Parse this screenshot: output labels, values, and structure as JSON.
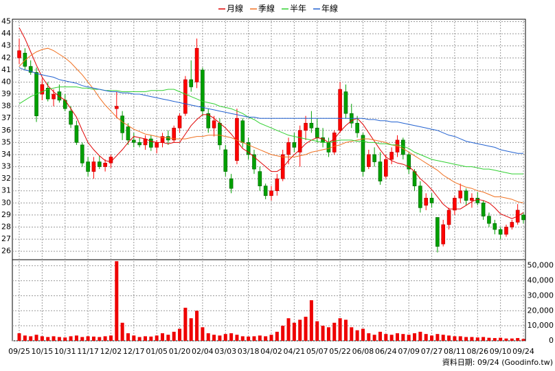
{
  "chart_data": {
    "type": "candlestick",
    "legend": "top",
    "grid": true,
    "up_color": "#ff0000",
    "down_color": "#00a000",
    "footer": "資料日期: 09/24  (Goodinfo.tw)",
    "categories": [
      "09/25",
      null,
      null,
      null,
      "10/15",
      null,
      null,
      null,
      "10/31",
      null,
      null,
      null,
      "11/17",
      null,
      null,
      null,
      "12/02",
      null,
      null,
      null,
      "12/17",
      null,
      null,
      null,
      "01/05",
      null,
      null,
      null,
      "01/20",
      null,
      null,
      null,
      "02/04",
      null,
      null,
      null,
      "03/03",
      null,
      null,
      null,
      "03/18",
      null,
      null,
      null,
      "04/02",
      null,
      null,
      null,
      "04/21",
      null,
      null,
      null,
      "05/07",
      null,
      null,
      null,
      "05/22",
      null,
      null,
      null,
      "06/08",
      null,
      null,
      null,
      "06/24",
      null,
      null,
      null,
      "07/09",
      null,
      null,
      null,
      "07/27",
      null,
      null,
      null,
      "08/11",
      null,
      null,
      null,
      "08/26",
      null,
      null,
      null,
      "09/10",
      null,
      null,
      null,
      "09/24"
    ],
    "open": [
      42.0,
      42.4,
      41.3,
      40.8,
      39.0,
      39.5,
      38.6,
      39.2,
      38.5,
      37.6,
      36.4,
      34.8,
      33.4,
      32.6,
      33.4,
      33.0,
      33.3,
      37.8,
      37.2,
      36.3,
      35.2,
      35.0,
      34.8,
      35.3,
      34.6,
      35.0,
      35.5,
      35.2,
      36.2,
      37.4,
      40.2,
      40.0,
      41.0,
      37.4,
      36.2,
      36.6,
      34.4,
      32.0,
      33.5,
      36.8,
      35.0,
      34.0,
      32.6,
      31.4,
      30.6,
      31.0,
      32.0,
      34.0,
      35.0,
      34.2,
      36.0,
      36.6,
      36.2,
      35.4,
      35.0,
      34.2,
      36.0,
      39.2,
      37.4,
      36.6,
      35.6,
      33.0,
      34.0,
      33.4,
      32.2,
      33.6,
      34.2,
      35.2,
      34.0,
      32.6,
      31.4,
      29.8,
      30.4,
      28.8,
      26.6,
      28.2,
      29.4,
      30.4,
      31.0,
      30.2,
      30.4,
      30.0,
      28.9,
      28.3,
      27.8,
      27.4,
      28.0,
      28.4,
      29.0
    ],
    "high": [
      43.6,
      42.8,
      41.8,
      41.2,
      40.3,
      40.0,
      39.4,
      39.8,
      39.0,
      38.0,
      36.8,
      35.0,
      33.8,
      33.8,
      33.9,
      33.6,
      34.0,
      39.2,
      37.6,
      36.6,
      35.8,
      35.4,
      35.6,
      35.6,
      35.2,
      35.8,
      36.0,
      36.4,
      37.4,
      40.5,
      41.8,
      43.6,
      41.2,
      37.8,
      37.2,
      37.0,
      34.8,
      32.4,
      37.8,
      37.0,
      35.4,
      34.4,
      33.0,
      31.6,
      31.4,
      32.4,
      34.4,
      35.4,
      35.8,
      36.4,
      37.2,
      37.6,
      37.0,
      36.2,
      35.4,
      36.0,
      40.0,
      39.8,
      38.2,
      37.2,
      35.8,
      34.4,
      34.6,
      34.2,
      34.0,
      34.6,
      35.6,
      35.4,
      34.2,
      32.8,
      31.8,
      30.8,
      30.8,
      28.8,
      28.6,
      29.6,
      30.6,
      31.6,
      31.2,
      30.8,
      30.9,
      30.2,
      29.2,
      28.6,
      28.0,
      28.2,
      28.6,
      29.9,
      29.2
    ],
    "low": [
      41.5,
      41.0,
      40.6,
      36.7,
      38.5,
      38.4,
      38.0,
      38.3,
      37.6,
      36.2,
      34.8,
      33.0,
      32.2,
      32.0,
      32.8,
      32.6,
      32.9,
      37.0,
      35.2,
      34.8,
      34.6,
      34.6,
      34.4,
      34.3,
      34.1,
      34.6,
      34.8,
      35.0,
      35.8,
      37.2,
      39.2,
      39.5,
      37.2,
      35.8,
      35.5,
      34.4,
      32.2,
      30.8,
      33.2,
      34.6,
      33.6,
      32.4,
      31.0,
      30.3,
      30.2,
      30.6,
      31.8,
      33.2,
      34.2,
      33.0,
      35.2,
      35.8,
      35.0,
      34.6,
      33.8,
      34.0,
      35.8,
      37.0,
      36.2,
      35.4,
      32.2,
      32.8,
      33.0,
      31.5,
      32.0,
      33.2,
      33.8,
      33.6,
      32.4,
      31.0,
      29.2,
      29.4,
      29.6,
      25.9,
      26.4,
      27.8,
      29.0,
      30.0,
      29.8,
      29.6,
      29.8,
      28.6,
      28.0,
      27.4,
      27.0,
      27.2,
      27.8,
      28.2,
      28.3
    ],
    "close": [
      42.6,
      41.3,
      40.8,
      37.2,
      39.8,
      38.6,
      39.0,
      38.5,
      37.8,
      36.5,
      35.0,
      33.3,
      32.6,
      33.4,
      33.0,
      33.3,
      33.8,
      38.0,
      35.8,
      35.2,
      35.0,
      34.8,
      35.3,
      34.6,
      35.0,
      35.5,
      35.2,
      36.2,
      37.2,
      40.2,
      39.6,
      42.8,
      37.6,
      36.2,
      36.8,
      34.8,
      32.6,
      31.2,
      37.0,
      35.0,
      34.0,
      32.8,
      31.4,
      30.6,
      31.0,
      32.0,
      34.0,
      35.0,
      34.6,
      36.0,
      36.6,
      36.2,
      35.4,
      35.0,
      34.2,
      35.8,
      39.4,
      37.4,
      36.6,
      35.8,
      32.6,
      34.0,
      33.4,
      31.8,
      33.6,
      34.2,
      35.2,
      34.0,
      32.8,
      31.4,
      29.6,
      30.4,
      30.0,
      26.4,
      28.2,
      29.4,
      30.4,
      31.0,
      30.2,
      30.4,
      30.0,
      28.9,
      28.3,
      27.8,
      27.4,
      28.0,
      28.4,
      29.4,
      28.6
    ],
    "ylim": [
      25.3,
      45.2
    ],
    "yticks": [
      26,
      27,
      28,
      29,
      30,
      31,
      32,
      33,
      34,
      35,
      36,
      37,
      38,
      39,
      40,
      41,
      42,
      43,
      44,
      45
    ],
    "series": [
      {
        "name": "月線",
        "color": "#e00000",
        "values": [
          44.5,
          43.6,
          42.5,
          41.4,
          40.4,
          39.7,
          39.2,
          38.8,
          38.5,
          37.8,
          37.1,
          36.0,
          35.0,
          34.4,
          33.9,
          33.5,
          33.4,
          33.9,
          34.4,
          35.0,
          35.5,
          35.4,
          35.3,
          35.1,
          35.0,
          35.0,
          34.9,
          35.0,
          35.0,
          35.7,
          36.4,
          36.9,
          37.3,
          37.3,
          37.0,
          36.6,
          36.2,
          35.7,
          35.1,
          34.5,
          34.2,
          33.8,
          33.4,
          33.0,
          32.6,
          32.6,
          32.9,
          33.5,
          34.0,
          34.4,
          34.9,
          35.2,
          35.4,
          35.3,
          35.0,
          35.3,
          35.9,
          36.4,
          36.8,
          37.0,
          36.5,
          35.8,
          35.1,
          34.4,
          33.8,
          33.5,
          33.3,
          33.2,
          33.0,
          32.6,
          32.0,
          31.6,
          31.1,
          30.5,
          29.9,
          29.5,
          29.5,
          29.5,
          29.8,
          30.1,
          30.3,
          30.2,
          30.0,
          29.6,
          29.1,
          28.9,
          28.7,
          28.9,
          29.2
        ]
      },
      {
        "name": "季線",
        "color": "#f07020",
        "values": [
          41.3,
          41.8,
          42.2,
          42.5,
          42.7,
          42.8,
          42.6,
          42.3,
          42.0,
          41.6,
          41.1,
          40.6,
          40.0,
          39.4,
          38.7,
          38.1,
          37.6,
          37.1,
          36.7,
          36.4,
          36.1,
          35.9,
          35.7,
          35.6,
          35.5,
          35.4,
          35.4,
          35.3,
          35.3,
          35.3,
          35.4,
          35.5,
          35.5,
          35.6,
          35.6,
          35.6,
          35.5,
          35.4,
          35.2,
          35.0,
          34.8,
          34.6,
          34.4,
          34.2,
          34.0,
          33.9,
          33.8,
          33.8,
          33.8,
          33.9,
          34.0,
          34.2,
          34.3,
          34.4,
          34.5,
          34.7,
          34.8,
          35.0,
          35.1,
          35.2,
          35.3,
          35.3,
          35.2,
          35.1,
          35.0,
          34.8,
          34.7,
          34.5,
          34.2,
          33.9,
          33.6,
          33.3,
          33.0,
          32.7,
          32.3,
          32.0,
          31.7,
          31.5,
          31.3,
          31.2,
          31.0,
          30.9,
          30.7,
          30.5,
          30.5,
          30.4,
          30.3,
          30.1,
          30.0
        ]
      },
      {
        "name": "半年",
        "color": "#30d030",
        "values": [
          38.2,
          38.5,
          38.8,
          39.0,
          39.2,
          39.4,
          39.5,
          39.6,
          39.6,
          39.6,
          39.6,
          39.5,
          39.5,
          39.4,
          39.4,
          39.3,
          39.3,
          39.3,
          39.2,
          39.2,
          39.2,
          39.2,
          39.2,
          39.3,
          39.3,
          39.3,
          39.4,
          39.4,
          39.2,
          39.0,
          38.8,
          38.6,
          38.4,
          38.3,
          38.2,
          38.0,
          37.9,
          37.8,
          37.6,
          37.4,
          37.1,
          36.9,
          36.6,
          36.4,
          36.2,
          36.0,
          35.8,
          35.6,
          35.5,
          35.4,
          35.3,
          35.2,
          35.1,
          35.0,
          35.0,
          35.1,
          35.2,
          35.2,
          35.2,
          35.1,
          35.1,
          35.0,
          35.0,
          34.9,
          34.9,
          34.8,
          34.8,
          34.7,
          34.5,
          34.2,
          34.0,
          33.8,
          33.6,
          33.5,
          33.4,
          33.3,
          33.2,
          33.1,
          33.0,
          33.0,
          32.9,
          32.8,
          32.8,
          32.7,
          32.6,
          32.5,
          32.4,
          32.4,
          32.4
        ]
      },
      {
        "name": "年線",
        "color": "#2060d0",
        "values": [
          41.2,
          41.0,
          40.9,
          40.7,
          40.6,
          40.5,
          40.4,
          40.2,
          40.1,
          40.0,
          39.9,
          39.7,
          39.6,
          39.5,
          39.4,
          39.3,
          39.2,
          39.2,
          39.1,
          39.1,
          39.0,
          39.0,
          38.9,
          38.8,
          38.7,
          38.6,
          38.5,
          38.4,
          38.3,
          38.2,
          38.1,
          38.0,
          37.9,
          37.8,
          37.7,
          37.6,
          37.5,
          37.4,
          37.3,
          37.2,
          37.1,
          37.1,
          37.0,
          37.0,
          37.0,
          37.0,
          37.0,
          37.0,
          37.0,
          37.0,
          37.0,
          37.0,
          37.0,
          37.0,
          37.0,
          37.0,
          37.0,
          37.0,
          37.0,
          37.0,
          37.0,
          36.9,
          36.9,
          36.8,
          36.8,
          36.7,
          36.7,
          36.6,
          36.5,
          36.4,
          36.3,
          36.2,
          36.1,
          36.0,
          35.8,
          35.6,
          35.5,
          35.3,
          35.1,
          35.0,
          34.9,
          34.8,
          34.7,
          34.6,
          34.4,
          34.3,
          34.2,
          34.1,
          34.1
        ]
      }
    ],
    "volume": {
      "color": "#ee0000",
      "values": [
        5000,
        3500,
        3000,
        4000,
        3000,
        2500,
        3000,
        2500,
        2200,
        3000,
        3500,
        2500,
        3000,
        2800,
        2500,
        3000,
        3500,
        53000,
        12000,
        5000,
        3500,
        2500,
        3000,
        2800,
        3500,
        5000,
        4000,
        6000,
        8000,
        22000,
        15000,
        20000,
        9000,
        5000,
        4000,
        3500,
        4500,
        5000,
        4000,
        3000,
        2800,
        3000,
        3500,
        3000,
        4000,
        6000,
        10000,
        15000,
        12000,
        14000,
        16000,
        27000,
        13000,
        10000,
        9000,
        12000,
        15000,
        14000,
        9000,
        7000,
        8000,
        5000,
        4000,
        6000,
        4500,
        4000,
        5000,
        4500,
        4000,
        5000,
        6000,
        4500,
        3500,
        4500,
        4000,
        3500,
        3000,
        3000,
        2500,
        2500,
        2200,
        2500,
        2000,
        1800,
        2000,
        1500,
        1500,
        1800,
        1200
      ],
      "ylim": [
        0,
        54000
      ],
      "yticks": [
        0,
        {
          "value": 10000,
          "label": "10,000"
        },
        {
          "value": 20000,
          "label": "20,000"
        },
        {
          "value": 30000,
          "label": "30,000"
        },
        {
          "value": 40000,
          "label": "40,000"
        },
        {
          "value": 50000,
          "label": "50,000"
        }
      ]
    }
  }
}
